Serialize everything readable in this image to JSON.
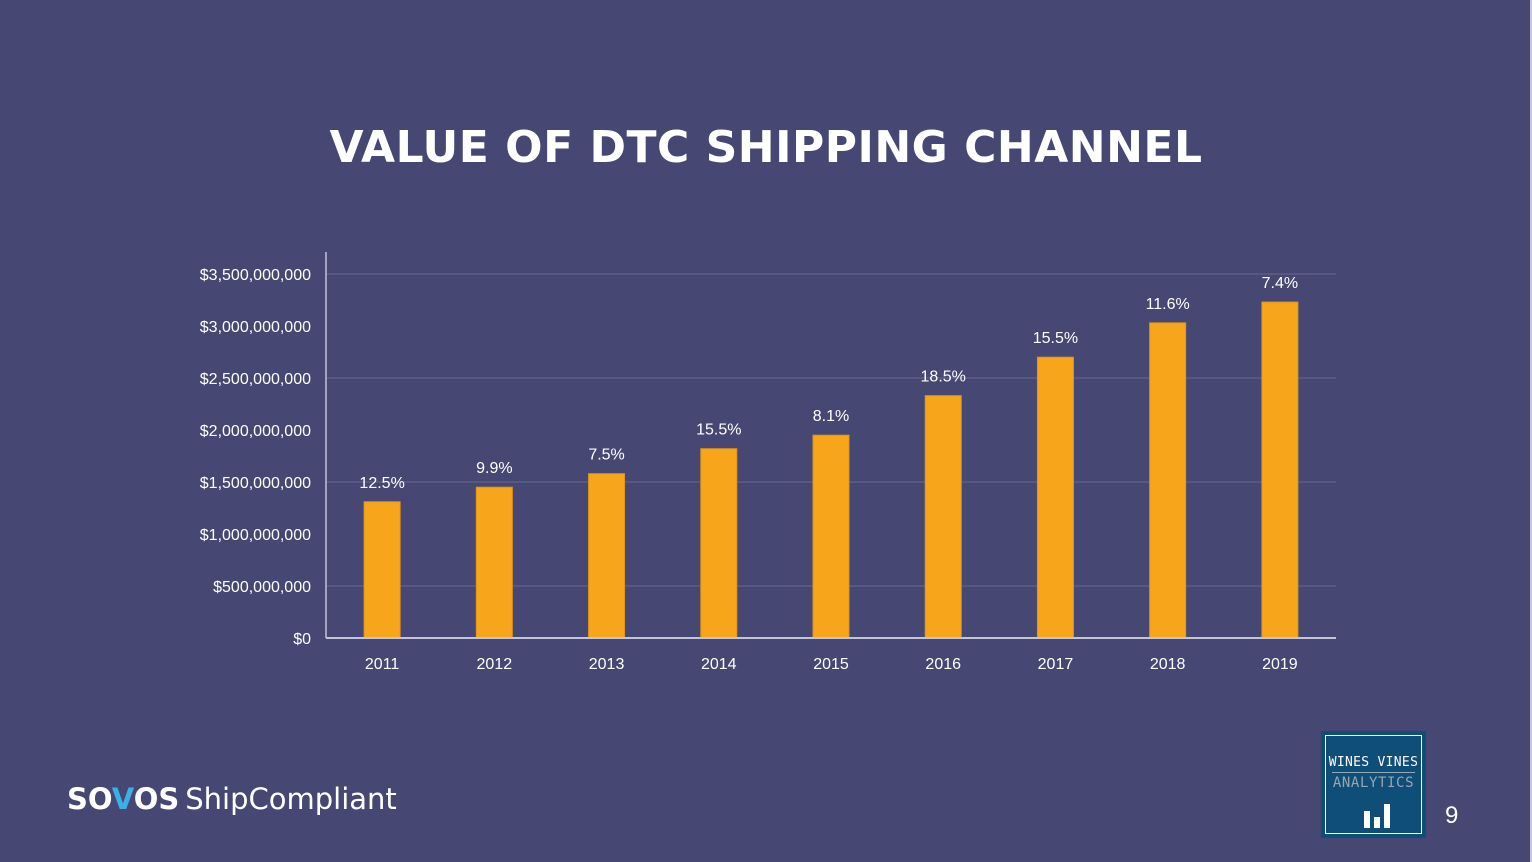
{
  "slide": {
    "title": "VALUE OF DTC SHIPPING CHANNEL",
    "page_number": "9",
    "footer_brand": {
      "prefix": "SO",
      "accent": "V",
      "suffix": "OS",
      "product": "ShipCompliant"
    },
    "badge": {
      "line1": "WINES VINES",
      "line2": "ANALYTICS",
      "icon": "bar-chart-icon"
    }
  },
  "colors": {
    "background": "#464873",
    "bar": "#f7a61c",
    "text": "#ffffff",
    "gridline": "#5c5e86",
    "axis": "#c3c4d6",
    "badge_bg": "#0f4e78",
    "brand_accent": "#3ab0e6"
  },
  "chart_data": {
    "type": "bar",
    "title": "VALUE OF DTC SHIPPING CHANNEL",
    "xlabel": "",
    "ylabel": "",
    "categories": [
      "2011",
      "2012",
      "2013",
      "2014",
      "2015",
      "2016",
      "2017",
      "2018",
      "2019"
    ],
    "values": [
      1310000000,
      1450000000,
      1580000000,
      1820000000,
      1950000000,
      2330000000,
      2700000000,
      3030000000,
      3230000000
    ],
    "data_labels": [
      "12.5%",
      "9.9%",
      "7.5%",
      "15.5%",
      "8.1%",
      "18.5%",
      "15.5%",
      "11.6%",
      "7.4%"
    ],
    "ylim": [
      0,
      3500000000
    ],
    "yticks": [
      0,
      500000000,
      1000000000,
      1500000000,
      2000000000,
      2500000000,
      3000000000,
      3500000000
    ],
    "ytick_labels": [
      "$0",
      "$500,000,000",
      "$1,000,000,000",
      "$1,500,000,000",
      "$2,000,000,000",
      "$2,500,000,000",
      "$3,000,000,000",
      "$3,500,000,000"
    ],
    "gridlines_at": [
      500000000,
      1500000000,
      2500000000,
      3500000000
    ],
    "grid": true,
    "legend": "none"
  }
}
